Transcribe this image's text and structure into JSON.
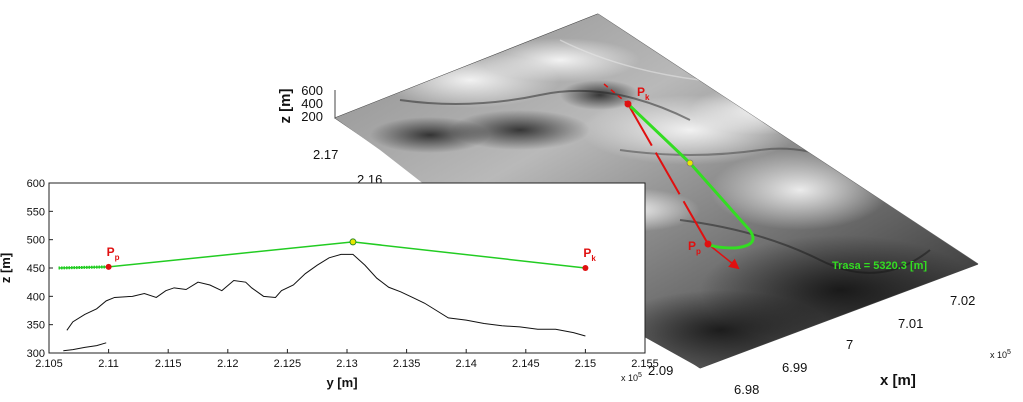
{
  "chart_data": [
    {
      "type": "surface",
      "zlabel": "z  [m]",
      "xlabel": "x  [m]",
      "ylabel": "y  [m]",
      "z_ticks": [
        "600",
        "400",
        "200"
      ],
      "y_ticks": [
        "2.17",
        "2.16",
        "2.09"
      ],
      "x_ticks": [
        "7.02",
        "7.01",
        "7",
        "6.99",
        "6.98"
      ],
      "x_exponent": "x 10",
      "x_exponent_power": "5",
      "annotation": "Trasa = 5320.3 [m]",
      "points": [
        {
          "name": "P",
          "sub": "k"
        },
        {
          "name": "P",
          "sub": "p"
        }
      ],
      "colors": {
        "route": "#22cc22",
        "direction": "#e01010",
        "midpoint": "#e8e800"
      }
    },
    {
      "type": "line",
      "ylabel": "z  [m]",
      "xlabel": "y  [m]",
      "xlim": [
        2.105,
        2.155
      ],
      "ylim": [
        300,
        600
      ],
      "x_ticks": [
        "2.105",
        "2.11",
        "2.115",
        "2.12",
        "2.125",
        "2.13",
        "2.135",
        "2.14",
        "2.145",
        "2.15",
        "2.155"
      ],
      "y_ticks": [
        "600",
        "550",
        "500",
        "450",
        "400",
        "350",
        "300"
      ],
      "x_exponent": "x 10",
      "x_exponent_power": "5",
      "point_labels": [
        {
          "name": "P",
          "sub": "p",
          "x": 2.11,
          "z": 452
        },
        {
          "name": "P",
          "sub": "k",
          "x": 2.15,
          "z": 450
        }
      ],
      "series": [
        {
          "color": "#22cc22",
          "x": [
            2.1058,
            2.11,
            2.1305,
            2.15
          ],
          "y": [
            450,
            452,
            496,
            450
          ]
        },
        {
          "color": "#111111",
          "x": [
            2.1065,
            2.107,
            2.108,
            2.109,
            2.1098,
            2.1105,
            2.112,
            2.113,
            2.114,
            2.1148,
            2.1155,
            2.1165,
            2.1175,
            2.1185,
            2.1195,
            2.1205,
            2.1215,
            2.122,
            2.123,
            2.124,
            2.1245,
            2.1255,
            2.1265,
            2.1275,
            2.1285,
            2.1295,
            2.1305,
            2.1315,
            2.1325,
            2.1335,
            2.1345,
            2.1355,
            2.1365,
            2.1375,
            2.1385,
            2.14,
            2.1415,
            2.143,
            2.1445,
            2.146,
            2.1475,
            2.149,
            2.15
          ],
          "y": [
            340,
            355,
            368,
            378,
            392,
            398,
            400,
            405,
            398,
            410,
            415,
            412,
            425,
            420,
            410,
            428,
            425,
            415,
            400,
            398,
            410,
            420,
            440,
            455,
            468,
            474,
            474,
            455,
            432,
            416,
            408,
            398,
            388,
            375,
            362,
            358,
            352,
            348,
            346,
            342,
            342,
            336,
            330
          ]
        },
        {
          "color": "#111111",
          "x": [
            2.1062,
            2.107,
            2.108,
            2.109,
            2.1098
          ],
          "y": [
            304,
            306,
            310,
            313,
            318
          ]
        }
      ]
    }
  ]
}
